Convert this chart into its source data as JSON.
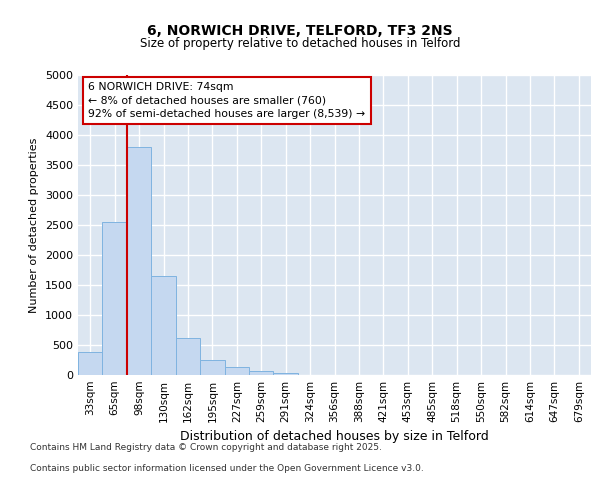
{
  "title1": "6, NORWICH DRIVE, TELFORD, TF3 2NS",
  "title2": "Size of property relative to detached houses in Telford",
  "xlabel": "Distribution of detached houses by size in Telford",
  "ylabel": "Number of detached properties",
  "categories": [
    "33sqm",
    "65sqm",
    "98sqm",
    "130sqm",
    "162sqm",
    "195sqm",
    "227sqm",
    "259sqm",
    "291sqm",
    "324sqm",
    "356sqm",
    "388sqm",
    "421sqm",
    "453sqm",
    "485sqm",
    "518sqm",
    "550sqm",
    "582sqm",
    "614sqm",
    "647sqm",
    "679sqm"
  ],
  "values": [
    380,
    2550,
    3800,
    1650,
    620,
    250,
    130,
    60,
    40,
    0,
    0,
    0,
    0,
    0,
    0,
    0,
    0,
    0,
    0,
    0,
    0
  ],
  "bar_color": "#c5d8f0",
  "bar_edge_color": "#7fb3e0",
  "plot_bg_color": "#dce6f1",
  "grid_color": "#ffffff",
  "fig_bg_color": "#ffffff",
  "vline_color": "#cc0000",
  "vline_x_pos": 1.5,
  "annotation_text": "6 NORWICH DRIVE: 74sqm\n← 8% of detached houses are smaller (760)\n92% of semi-detached houses are larger (8,539) →",
  "annotation_box_facecolor": "#ffffff",
  "annotation_box_edgecolor": "#cc0000",
  "ylim_max": 5000,
  "yticks": [
    0,
    500,
    1000,
    1500,
    2000,
    2500,
    3000,
    3500,
    4000,
    4500,
    5000
  ],
  "footer1": "Contains HM Land Registry data © Crown copyright and database right 2025.",
  "footer2": "Contains public sector information licensed under the Open Government Licence v3.0."
}
